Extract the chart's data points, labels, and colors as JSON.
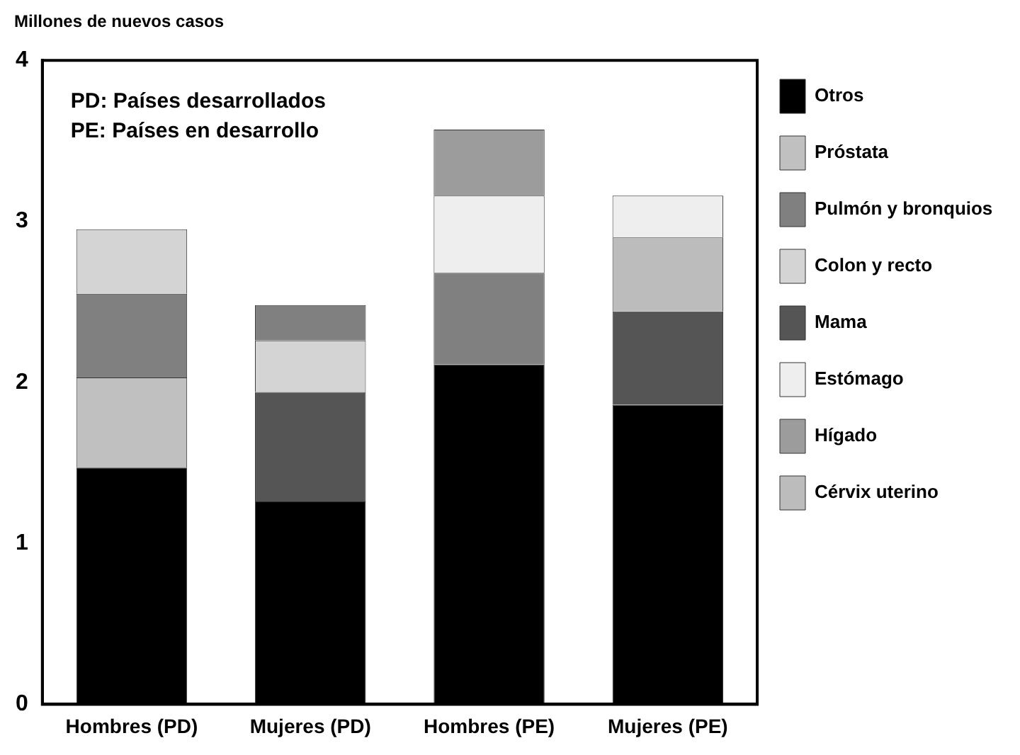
{
  "chart_data": {
    "type": "bar",
    "stacked": true,
    "ylabel": "Millones de nuevos casos",
    "categories": [
      "Hombres (PD)",
      "Mujeres (PD)",
      "Hombres (PE)",
      "Mujeres (PE)"
    ],
    "series": [
      {
        "name": "Otros",
        "color": "#000000",
        "values": [
          1.47,
          1.26,
          2.11,
          1.86
        ]
      },
      {
        "name": "Próstata",
        "color": "#c0c0c0",
        "values": [
          0.56,
          null,
          null,
          null
        ]
      },
      {
        "color": "#555555",
        "values": [
          null,
          0.68,
          null,
          null
        ]
      },
      {
        "name": "Pulmón y bronquios",
        "color": "#808080",
        "values": [
          0.52,
          null,
          0.57,
          null
        ]
      },
      {
        "name": "Colon y recto",
        "color": "#d4d4d4",
        "values": [
          0.4,
          0.32,
          null,
          null
        ]
      },
      {
        "color": "#808080",
        "values": [
          null,
          0.22,
          null,
          null
        ]
      },
      {
        "name": "Mama",
        "color": "#555555",
        "values": [
          null,
          null,
          null,
          0.58
        ]
      },
      {
        "name": "Estómago",
        "color": "#eeeeee",
        "values": [
          null,
          null,
          0.48,
          null
        ]
      },
      {
        "name": "Hígado",
        "color": "#9c9c9c",
        "values": [
          null,
          null,
          0.41,
          null
        ]
      },
      {
        "name": "Cérvix uterino",
        "color": "#bcbcbc",
        "values": [
          null,
          null,
          null,
          0.46
        ]
      },
      {
        "color": "#eeeeee",
        "values": [
          null,
          null,
          null,
          0.26
        ]
      }
    ],
    "ylim": [
      0,
      4
    ],
    "yticks": [
      0,
      1,
      2,
      3,
      4
    ],
    "grid": false,
    "legend": "right",
    "annotations": [
      "PD: Países desarrollados",
      "PE: Países en desarrollo"
    ]
  }
}
